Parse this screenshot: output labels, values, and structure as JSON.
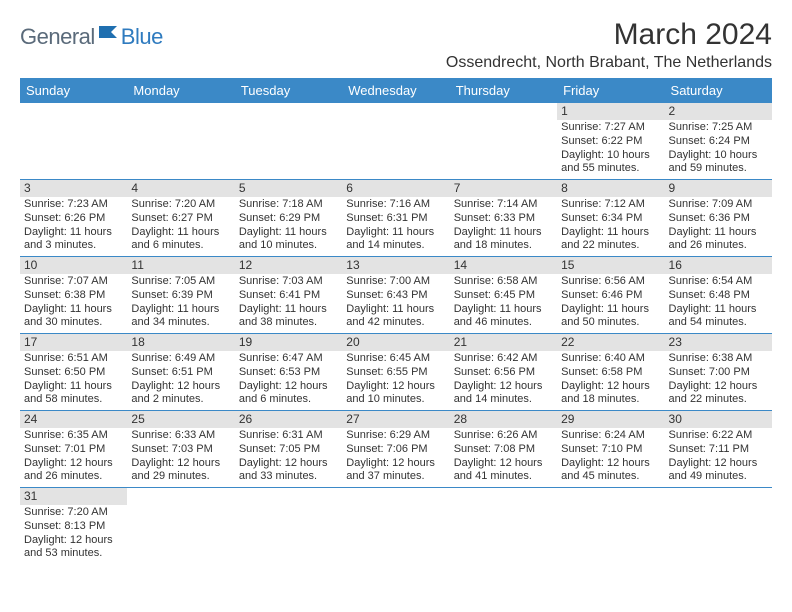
{
  "brand": {
    "part1": "General",
    "part2": "Blue"
  },
  "title": "March 2024",
  "location": "Ossendrecht, North Brabant, The Netherlands",
  "colors": {
    "header_bg": "#3b89c7",
    "header_fg": "#ffffff",
    "daynum_bg": "#e3e3e3",
    "border": "#3b89c7",
    "text": "#333333",
    "logo_gray": "#5a6a7a",
    "logo_blue": "#2f7bbf"
  },
  "weekdays": [
    "Sunday",
    "Monday",
    "Tuesday",
    "Wednesday",
    "Thursday",
    "Friday",
    "Saturday"
  ],
  "weeks": [
    [
      null,
      null,
      null,
      null,
      null,
      {
        "n": "1",
        "sr": "7:27 AM",
        "ss": "6:22 PM",
        "dl": "10 hours and 55 minutes."
      },
      {
        "n": "2",
        "sr": "7:25 AM",
        "ss": "6:24 PM",
        "dl": "10 hours and 59 minutes."
      }
    ],
    [
      {
        "n": "3",
        "sr": "7:23 AM",
        "ss": "6:26 PM",
        "dl": "11 hours and 3 minutes."
      },
      {
        "n": "4",
        "sr": "7:20 AM",
        "ss": "6:27 PM",
        "dl": "11 hours and 6 minutes."
      },
      {
        "n": "5",
        "sr": "7:18 AM",
        "ss": "6:29 PM",
        "dl": "11 hours and 10 minutes."
      },
      {
        "n": "6",
        "sr": "7:16 AM",
        "ss": "6:31 PM",
        "dl": "11 hours and 14 minutes."
      },
      {
        "n": "7",
        "sr": "7:14 AM",
        "ss": "6:33 PM",
        "dl": "11 hours and 18 minutes."
      },
      {
        "n": "8",
        "sr": "7:12 AM",
        "ss": "6:34 PM",
        "dl": "11 hours and 22 minutes."
      },
      {
        "n": "9",
        "sr": "7:09 AM",
        "ss": "6:36 PM",
        "dl": "11 hours and 26 minutes."
      }
    ],
    [
      {
        "n": "10",
        "sr": "7:07 AM",
        "ss": "6:38 PM",
        "dl": "11 hours and 30 minutes."
      },
      {
        "n": "11",
        "sr": "7:05 AM",
        "ss": "6:39 PM",
        "dl": "11 hours and 34 minutes."
      },
      {
        "n": "12",
        "sr": "7:03 AM",
        "ss": "6:41 PM",
        "dl": "11 hours and 38 minutes."
      },
      {
        "n": "13",
        "sr": "7:00 AM",
        "ss": "6:43 PM",
        "dl": "11 hours and 42 minutes."
      },
      {
        "n": "14",
        "sr": "6:58 AM",
        "ss": "6:45 PM",
        "dl": "11 hours and 46 minutes."
      },
      {
        "n": "15",
        "sr": "6:56 AM",
        "ss": "6:46 PM",
        "dl": "11 hours and 50 minutes."
      },
      {
        "n": "16",
        "sr": "6:54 AM",
        "ss": "6:48 PM",
        "dl": "11 hours and 54 minutes."
      }
    ],
    [
      {
        "n": "17",
        "sr": "6:51 AM",
        "ss": "6:50 PM",
        "dl": "11 hours and 58 minutes."
      },
      {
        "n": "18",
        "sr": "6:49 AM",
        "ss": "6:51 PM",
        "dl": "12 hours and 2 minutes."
      },
      {
        "n": "19",
        "sr": "6:47 AM",
        "ss": "6:53 PM",
        "dl": "12 hours and 6 minutes."
      },
      {
        "n": "20",
        "sr": "6:45 AM",
        "ss": "6:55 PM",
        "dl": "12 hours and 10 minutes."
      },
      {
        "n": "21",
        "sr": "6:42 AM",
        "ss": "6:56 PM",
        "dl": "12 hours and 14 minutes."
      },
      {
        "n": "22",
        "sr": "6:40 AM",
        "ss": "6:58 PM",
        "dl": "12 hours and 18 minutes."
      },
      {
        "n": "23",
        "sr": "6:38 AM",
        "ss": "7:00 PM",
        "dl": "12 hours and 22 minutes."
      }
    ],
    [
      {
        "n": "24",
        "sr": "6:35 AM",
        "ss": "7:01 PM",
        "dl": "12 hours and 26 minutes."
      },
      {
        "n": "25",
        "sr": "6:33 AM",
        "ss": "7:03 PM",
        "dl": "12 hours and 29 minutes."
      },
      {
        "n": "26",
        "sr": "6:31 AM",
        "ss": "7:05 PM",
        "dl": "12 hours and 33 minutes."
      },
      {
        "n": "27",
        "sr": "6:29 AM",
        "ss": "7:06 PM",
        "dl": "12 hours and 37 minutes."
      },
      {
        "n": "28",
        "sr": "6:26 AM",
        "ss": "7:08 PM",
        "dl": "12 hours and 41 minutes."
      },
      {
        "n": "29",
        "sr": "6:24 AM",
        "ss": "7:10 PM",
        "dl": "12 hours and 45 minutes."
      },
      {
        "n": "30",
        "sr": "6:22 AM",
        "ss": "7:11 PM",
        "dl": "12 hours and 49 minutes."
      }
    ],
    [
      {
        "n": "31",
        "sr": "7:20 AM",
        "ss": "8:13 PM",
        "dl": "12 hours and 53 minutes."
      },
      null,
      null,
      null,
      null,
      null,
      null
    ]
  ],
  "labels": {
    "sunrise": "Sunrise:",
    "sunset": "Sunset:",
    "daylight": "Daylight:"
  }
}
